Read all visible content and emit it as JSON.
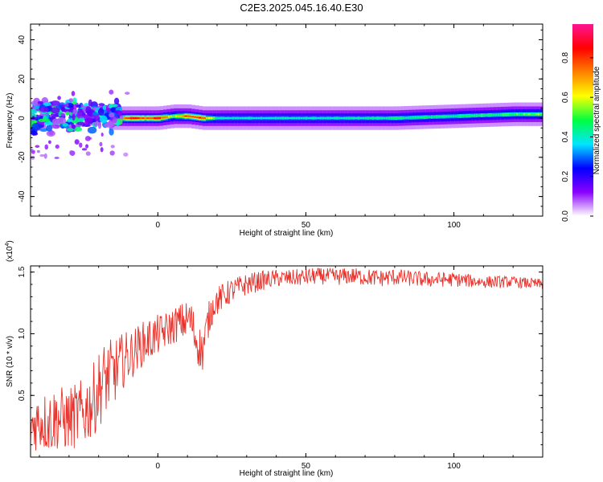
{
  "title": "C2E3.2025.045.16.40.E30",
  "chart_data": [
    {
      "type": "heatmap",
      "title": "C2E3.2025.045.16.40.E30",
      "xlabel": "Height of straight line (km)",
      "ylabel": "Frequency (Hz)",
      "xlim": [
        -43,
        130
      ],
      "ylim": [
        -50,
        48
      ],
      "x_ticks": [
        0,
        50,
        100
      ],
      "x_tick_labels": [
        "0",
        "50",
        "100"
      ],
      "y_ticks": [
        -40,
        -20,
        0,
        20,
        40
      ],
      "y_tick_labels": [
        "-40",
        "-20",
        "0",
        "20",
        "40"
      ],
      "colorbar": {
        "label": "Normalized spectral amplitude",
        "range": [
          0,
          0.97
        ],
        "ticks": [
          0.0,
          0.2,
          0.4,
          0.6,
          0.8
        ],
        "tick_labels": [
          "0.0",
          "0.2",
          "0.4",
          "0.6",
          "0.8"
        ],
        "colors": [
          "#ffffff",
          "#8a00ff",
          "#0000ff",
          "#00e5ff",
          "#00ff40",
          "#ffff00",
          "#ff8000",
          "#ff0000",
          "#ff1493"
        ]
      },
      "ridge": {
        "description_free": true,
        "x": [
          -15,
          -10,
          -5,
          0,
          5,
          10,
          15,
          20,
          40,
          60,
          80,
          100,
          120,
          130
        ],
        "frequency": [
          0,
          0,
          0,
          0,
          1,
          1,
          0,
          0,
          0,
          0,
          0,
          1,
          2,
          2
        ],
        "amplitude": [
          0.5,
          0.95,
          0.85,
          0.95,
          0.6,
          0.9,
          0.85,
          0.45,
          0.45,
          0.45,
          0.5,
          0.5,
          0.55,
          0.6
        ]
      }
    },
    {
      "type": "line",
      "xlabel": "Height of straight line (km)",
      "ylabel": "SNR (10 * v/v)",
      "y_multiplier": "(x10",
      "y_multiplier_exp": "4",
      "y_multiplier_close": ")",
      "xlim": [
        -43,
        130
      ],
      "ylim": [
        0,
        15500
      ],
      "x_ticks": [
        0,
        50,
        100
      ],
      "x_tick_labels": [
        "0",
        "50",
        "100"
      ],
      "y_ticks": [
        5000,
        10000,
        15000
      ],
      "y_tick_labels": [
        "0.5",
        "1.0",
        "1.5"
      ],
      "series": [
        {
          "color": "#e8312a",
          "x": [
            -43,
            -40,
            -37,
            -34,
            -31,
            -28,
            -25,
            -22,
            -19,
            -17,
            -15,
            -13,
            -11,
            -9,
            -7,
            -5,
            -3,
            -1,
            1,
            3,
            5,
            7,
            9,
            11,
            13,
            15,
            17,
            19,
            22,
            25,
            30,
            35,
            40,
            45,
            50,
            55,
            60,
            65,
            70,
            75,
            80,
            85,
            90,
            95,
            100,
            105,
            110,
            115,
            120,
            125,
            130
          ],
          "y": [
            2500,
            3000,
            2800,
            3200,
            3000,
            3300,
            3600,
            4500,
            6000,
            6500,
            6800,
            7500,
            8000,
            8300,
            8800,
            9200,
            9500,
            9800,
            10000,
            10300,
            10600,
            10900,
            11000,
            11200,
            9500,
            8500,
            11000,
            12500,
            13000,
            13500,
            14000,
            14300,
            14500,
            14500,
            14600,
            14700,
            14600,
            14700,
            14600,
            14500,
            14600,
            14500,
            14400,
            14400,
            14400,
            14300,
            14200,
            14200,
            14200,
            14100,
            14000
          ],
          "noise": [
            2200,
            2400,
            2600,
            2700,
            2600,
            2700,
            2800,
            3000,
            3200,
            3000,
            2800,
            2400,
            2200,
            2000,
            1900,
            1800,
            1800,
            1700,
            1600,
            1500,
            1500,
            1500,
            1600,
            1700,
            1800,
            1800,
            1500,
            1200,
            1100,
            1000,
            900,
            800,
            700,
            700,
            700,
            700,
            700,
            700,
            700,
            700,
            700,
            650,
            650,
            600,
            600,
            550,
            500,
            500,
            450,
            450,
            450
          ]
        }
      ]
    }
  ]
}
